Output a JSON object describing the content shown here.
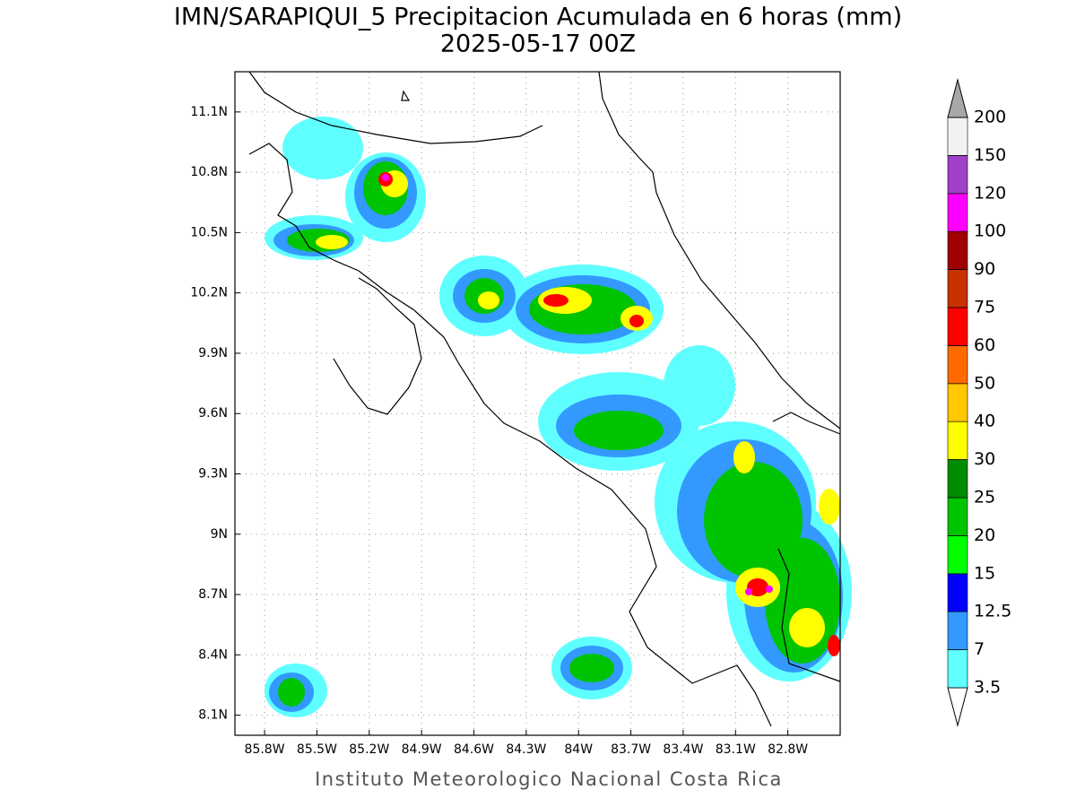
{
  "header": {
    "title": "IMN/SARAPIQUI_5 Precipitacion Acumulada en 6 horas (mm)",
    "subtitle": "2025-05-17 00Z"
  },
  "map": {
    "lonlim": [
      -85.97,
      -82.5
    ],
    "latlim": [
      8.0,
      11.3
    ],
    "grid": true,
    "lon_ticks": [
      {
        "value": -85.8,
        "label": "85.8W"
      },
      {
        "value": -85.5,
        "label": "85.5W"
      },
      {
        "value": -85.2,
        "label": "85.2W"
      },
      {
        "value": -84.9,
        "label": "84.9W"
      },
      {
        "value": -84.6,
        "label": "84.6W"
      },
      {
        "value": -84.3,
        "label": "84.3W"
      },
      {
        "value": -84,
        "label": "84W"
      },
      {
        "value": -83.7,
        "label": "83.7W"
      },
      {
        "value": -83.4,
        "label": "83.4W"
      },
      {
        "value": -83.1,
        "label": "83.1W"
      },
      {
        "value": -82.8,
        "label": "82.8W"
      }
    ],
    "lat_ticks": [
      {
        "value": 8.1,
        "label": "8.1N"
      },
      {
        "value": 8.4,
        "label": "8.4N"
      },
      {
        "value": 8.7,
        "label": "8.7N"
      },
      {
        "value": 9,
        "label": "9N"
      },
      {
        "value": 9.3,
        "label": "9.3N"
      },
      {
        "value": 9.6,
        "label": "9.6N"
      },
      {
        "value": 9.9,
        "label": "9.9N"
      },
      {
        "value": 10.2,
        "label": "10.2N"
      },
      {
        "value": 10.5,
        "label": "10.5N"
      },
      {
        "value": 10.8,
        "label": "10.8N"
      },
      {
        "value": 11.1,
        "label": "11.1N"
      }
    ]
  },
  "colorbar": {
    "levels": [
      3.5,
      7,
      12.5,
      15,
      20,
      25,
      30,
      40,
      50,
      60,
      75,
      90,
      100,
      120,
      150,
      200
    ],
    "colors": [
      "#ffffff",
      "#5fffff",
      "#3399ff",
      "#0000ff",
      "#00ff00",
      "#00c400",
      "#008c00",
      "#ffff00",
      "#ffc800",
      "#ff6a00",
      "#ff0000",
      "#c83200",
      "#a00000",
      "#ff00ff",
      "#a040c8",
      "#f2f2f2",
      "#a8a8a8"
    ]
  },
  "footer": "Instituto Meteorologico Nacional Costa Rica"
}
